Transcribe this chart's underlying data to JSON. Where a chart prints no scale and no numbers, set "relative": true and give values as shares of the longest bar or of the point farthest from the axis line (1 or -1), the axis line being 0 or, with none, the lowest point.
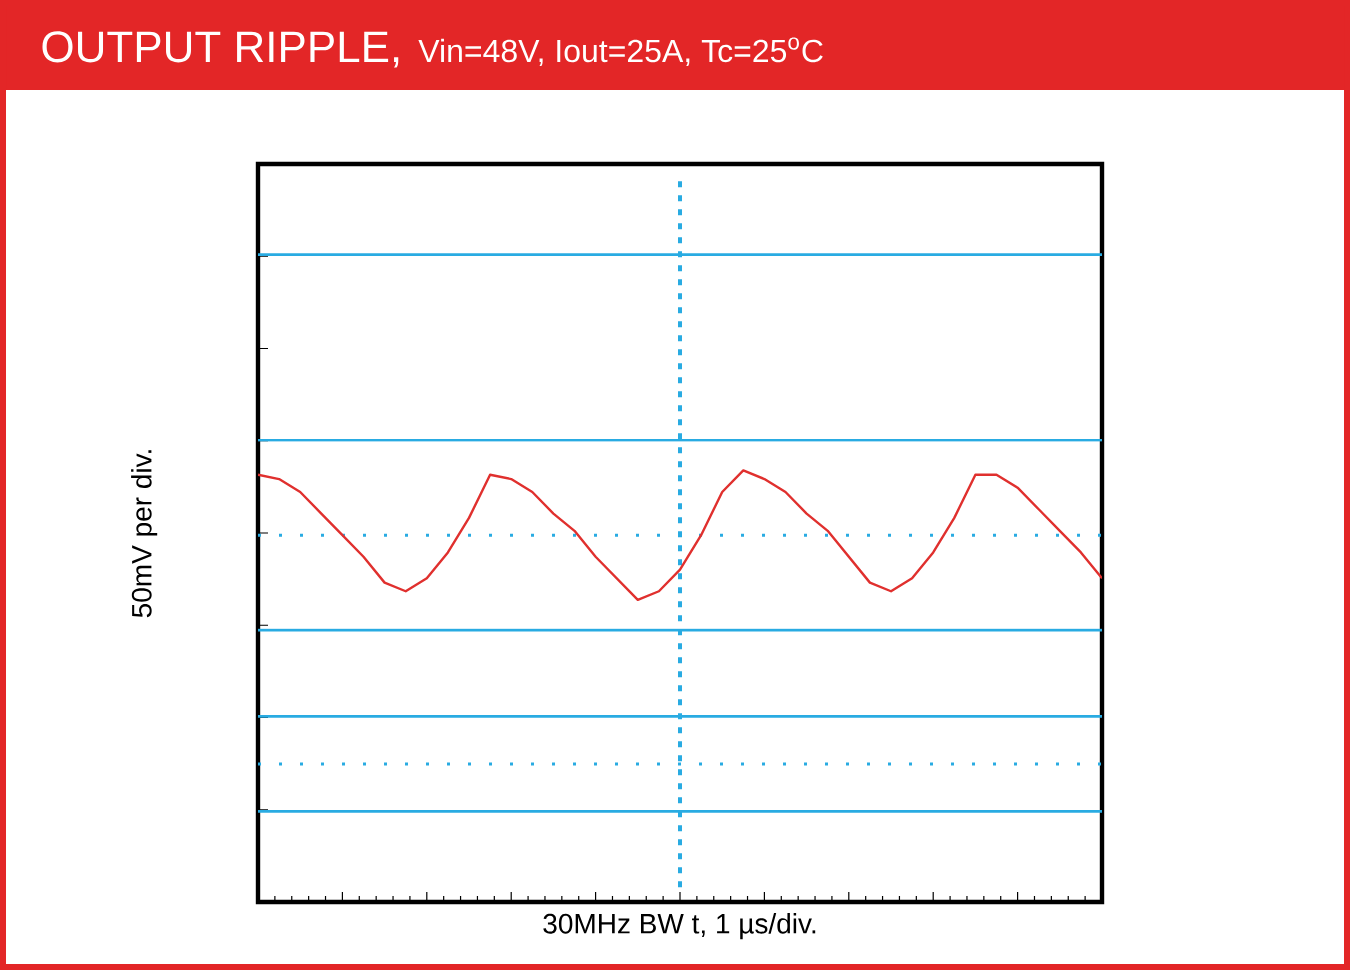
{
  "chart_data": {
    "type": "line",
    "title": "OUTPUT RIPPLE,",
    "subtitle": "Vin=48V, Iout=25A, Tc=25$^{o}$C",
    "xlabel": "30MHz BW    t, 1  µs/div.",
    "ylabel": "50mV per div.",
    "relative": true,
    "grid": false,
    "marker": "none",
    "line_style": "solid",
    "categories": [
      null,
      null,
      null,
      null,
      null,
      null,
      null,
      null,
      null,
      null,
      null,
      null,
      null,
      null,
      null,
      null,
      null,
      null,
      null,
      null,
      null,
      null,
      null,
      null,
      null,
      null,
      null,
      null,
      null,
      null,
      null,
      null,
      null,
      null,
      null,
      null,
      null,
      null,
      null,
      null,
      null
    ],
    "series": [
      {
        "color": "#e0302e",
        "values": [
          0.99,
          0.98,
          0.95,
          0.9,
          0.85,
          0.8,
          0.74,
          0.72,
          0.75,
          0.81,
          0.89,
          0.99,
          0.98,
          0.95,
          0.9,
          0.86,
          0.8,
          0.75,
          0.7,
          0.72,
          0.77,
          0.85,
          0.95,
          1.0,
          0.98,
          0.95,
          0.9,
          0.86,
          0.8,
          0.74,
          0.72,
          0.75,
          0.81,
          0.89,
          0.99,
          0.99,
          0.96,
          0.91,
          0.86,
          0.81,
          0.75
        ]
      }
    ],
    "ref_lines": [
      {
        "axis": "y",
        "value": 1.5,
        "color": "#29abe2",
        "line_style": "solid"
      },
      {
        "axis": "y",
        "value": 1.07,
        "color": "#29abe2",
        "line_style": "solid"
      },
      {
        "axis": "y",
        "value": 0.85,
        "color": "#29abe2",
        "line_style": "dotted"
      },
      {
        "axis": "y",
        "value": 0.63,
        "color": "#29abe2",
        "line_style": "solid"
      },
      {
        "axis": "y",
        "value": 0.43,
        "color": "#29abe2",
        "line_style": "solid"
      },
      {
        "axis": "y",
        "value": 0.32,
        "color": "#29abe2",
        "line_style": "dotted"
      },
      {
        "axis": "y",
        "value": 0.21,
        "color": "#29abe2",
        "line_style": "solid"
      }
    ]
  }
}
